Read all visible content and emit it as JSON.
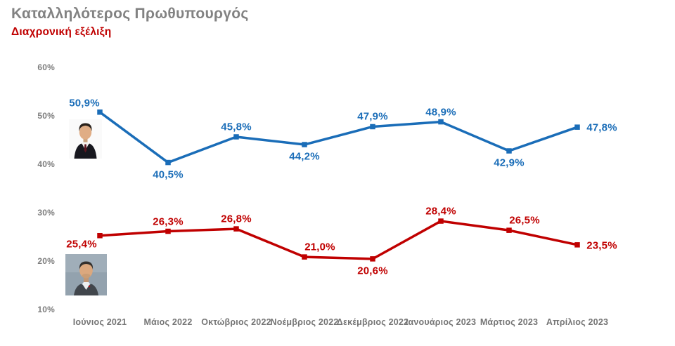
{
  "header": {
    "title": "Καταλληλότερος Πρωθυπουργός",
    "subtitle": "Διαχρονική εξέλιξη"
  },
  "colors": {
    "title_gray": "#828282",
    "axis_gray": "#7d7d7d",
    "series_blue": "#1a6db8",
    "series_red": "#c00000",
    "background": "#ffffff"
  },
  "chart_data": {
    "type": "line",
    "title": "Καταλληλότερος Πρωθυπουργός",
    "subtitle": "Διαχρονική εξέλιξη",
    "grid": false,
    "legend": "portrait photos beside first data point of each series",
    "categories": [
      "Ιούνιος 2021",
      "Μάιος 2022",
      "Οκτώβριος 2022",
      "Νοέμβριος 2022",
      "Δεκέμβριος 2022",
      "Ιανουάριος 2023",
      "Μάρτιος 2023",
      "Απρίλιος 2023"
    ],
    "y_axis": {
      "ticks": [
        "60%",
        "50%",
        "40%",
        "30%",
        "20%",
        "10%"
      ],
      "min": 10,
      "max": 60,
      "step": 10,
      "unit": "%"
    },
    "series": [
      {
        "name": "blue",
        "photo_icon": "mitsotakis-portrait",
        "color": "#1a6db8",
        "values": [
          50.9,
          40.5,
          45.8,
          44.2,
          47.9,
          48.9,
          42.9,
          47.8
        ],
        "labels": [
          "50,9%",
          "40,5%",
          "45,8%",
          "44,2%",
          "47,9%",
          "48,9%",
          "42,9%",
          "47,8%"
        ],
        "label_pos": [
          "above-left",
          "below",
          "above",
          "below",
          "above",
          "above",
          "below",
          "right"
        ]
      },
      {
        "name": "red",
        "photo_icon": "tsipras-portrait",
        "color": "#c00000",
        "values": [
          25.4,
          26.3,
          26.8,
          21.0,
          20.6,
          28.4,
          26.5,
          23.5
        ],
        "labels": [
          "25,4%",
          "26,3%",
          "26,8%",
          "21,0%",
          "20,6%",
          "28,4%",
          "26,5%",
          "23,5%"
        ],
        "label_pos": [
          "below-left",
          "above",
          "above",
          "above-right",
          "below",
          "above",
          "above-right",
          "right"
        ]
      }
    ]
  }
}
